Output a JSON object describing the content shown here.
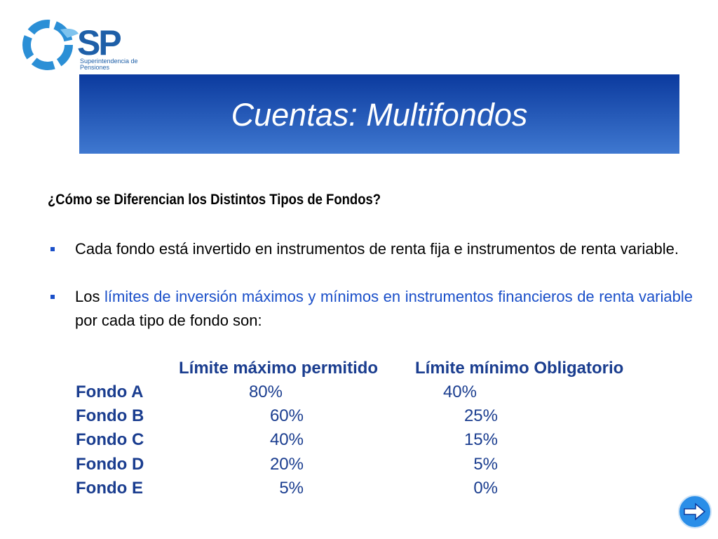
{
  "logo": {
    "acronym": "SP",
    "line1": "Superintendencia de",
    "line2": "Pensiones"
  },
  "title": "Cuentas: Multifondos",
  "heading": "¿Cómo se Diferencian los Distintos Tipos de Fondos?",
  "bullets": [
    {
      "text": "Cada fondo está invertido en instrumentos de renta fija e instrumentos de renta variable."
    },
    {
      "before": "Los ",
      "highlight": "límites de inversión máximos y mínimos en instrumentos financieros de renta variable",
      "after": " por cada tipo de fondo son:"
    }
  ],
  "table": {
    "headers": [
      "Límite máximo permitido",
      "Límite mínimo Obligatorio"
    ],
    "rows": [
      [
        "Fondo A",
        "80%",
        "40%"
      ],
      [
        "Fondo B",
        "60%",
        "25%"
      ],
      [
        "Fondo C",
        "40%",
        "15%"
      ],
      [
        "Fondo D",
        "20%",
        "5%"
      ],
      [
        "Fondo E",
        "5%",
        "0%"
      ]
    ]
  }
}
